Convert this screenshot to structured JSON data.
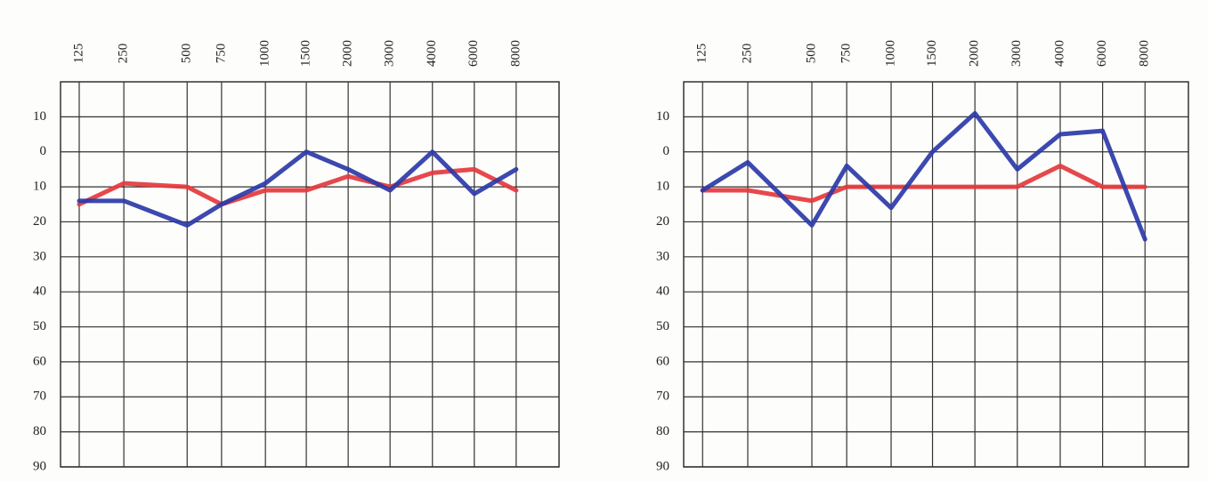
{
  "chart_data": [
    {
      "type": "line",
      "categories": [
        "125",
        "250",
        "500",
        "750",
        "1000",
        "1500",
        "2000",
        "3000",
        "4000",
        "6000",
        "8000"
      ],
      "series": [
        {
          "name": "red",
          "color": "#e5383d",
          "values": [
            15,
            9,
            10,
            15,
            11,
            11,
            7,
            10,
            6,
            5,
            11
          ]
        },
        {
          "name": "blue",
          "color": "#2b3aa8",
          "values": [
            14,
            14,
            21,
            15,
            9,
            0,
            5,
            11,
            0,
            12,
            5
          ]
        }
      ],
      "ylim": [
        90,
        -20
      ],
      "yticks": [
        {
          "value": -10,
          "label": "10"
        },
        0,
        10,
        20,
        30,
        40,
        50,
        60,
        70,
        80,
        90
      ],
      "grid": true
    },
    {
      "type": "line",
      "categories": [
        "125",
        "250",
        "500",
        "750",
        "1000",
        "1500",
        "2000",
        "3000",
        "4000",
        "6000",
        "8000"
      ],
      "series": [
        {
          "name": "red",
          "color": "#e5383d",
          "values": [
            11,
            11,
            14,
            10,
            10,
            10,
            10,
            10,
            4,
            10,
            10
          ]
        },
        {
          "name": "blue",
          "color": "#2b3aa8",
          "values": [
            11,
            3,
            21,
            4,
            16,
            0,
            -11,
            5,
            -5,
            -6,
            25
          ]
        }
      ],
      "ylim": [
        90,
        -20
      ],
      "yticks": [
        {
          "value": -10,
          "label": "10"
        },
        0,
        10,
        20,
        30,
        40,
        50,
        60,
        70,
        80,
        90
      ],
      "grid": true
    }
  ]
}
